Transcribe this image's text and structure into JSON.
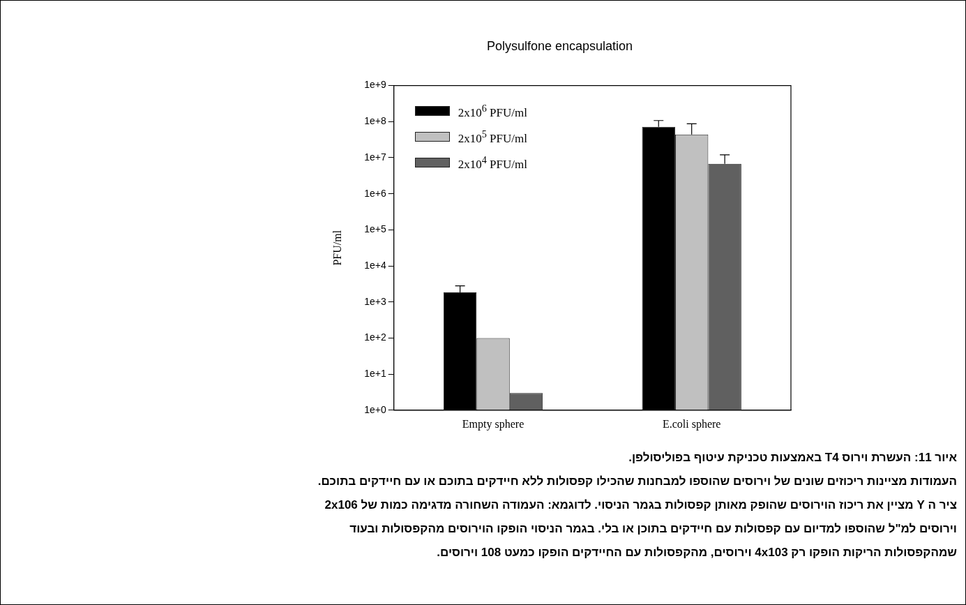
{
  "chart_data": {
    "type": "bar",
    "title": "Polysulfone encapsulation",
    "ylabel": "PFU/ml",
    "categories": [
      "Empty sphere",
      "E.coli sphere"
    ],
    "series": [
      {
        "name": "2x10$^{6}$ PFU/ml",
        "color": "#000000",
        "values": [
          1850,
          72000000
        ],
        "errors": [
          [
            1850,
            2800
          ],
          [
            72000000,
            107000000
          ]
        ]
      },
      {
        "name": "2x10$^{5}$ PFU/ml",
        "color": "#c0c0c0",
        "values": [
          100,
          44000000
        ],
        "errors": [
          null,
          [
            44000000,
            87000000
          ]
        ]
      },
      {
        "name": "2x10$^{4}$ PFU/ml",
        "color": "#606060",
        "values": [
          3,
          6800000
        ],
        "errors": [
          null,
          [
            6800000,
            12000000
          ]
        ]
      }
    ],
    "log": "y",
    "ylim": [
      1,
      1000000000
    ],
    "yticks": [
      {
        "value": 1,
        "label": "1e+0"
      },
      {
        "value": 10,
        "label": "1e+1"
      },
      {
        "value": 100,
        "label": "1e+2"
      },
      {
        "value": 1000,
        "label": "1e+3"
      },
      {
        "value": 10000,
        "label": "1e+4"
      },
      {
        "value": 100000,
        "label": "1e+5"
      },
      {
        "value": 1000000,
        "label": "1e+6"
      },
      {
        "value": 10000000,
        "label": "1e+7"
      },
      {
        "value": 100000000,
        "label": "1e+8"
      },
      {
        "value": 1000000000,
        "label": "1e+9"
      }
    ],
    "grid": false,
    "legend": "top left",
    "annotations": [
      "איור 11: העשרת וירוס T4 באמצעות טכניקת עיטוף בפוליסולפן.",
      "העמודות מציינות ריכוזים שונים של וירוסים שהוספו למבחנות שהכילו קפסולות ללא חיידקים בתוכם או עם חיידקים בתוכם.",
      "ציר ה Y מציין את ריכוז הוירוסים שהופק מאותן קפסולות בגמר הניסוי. לדוגמא: העמודה השחורה מדגימה כמות של 2x106",
      "וירוסים למ\"ל שהוספו למדיום עם קפסולות עם חיידקים בתוכן או בלי. בגמר הניסוי הופקו הוירוסים מהקפסולות ובעוד",
      "שמהקפסולות הריקות הופקו רק 4x103 וירוסים, מהקפסולות עם החיידקים הופקו כמעט 108 וירוסים."
    ]
  }
}
